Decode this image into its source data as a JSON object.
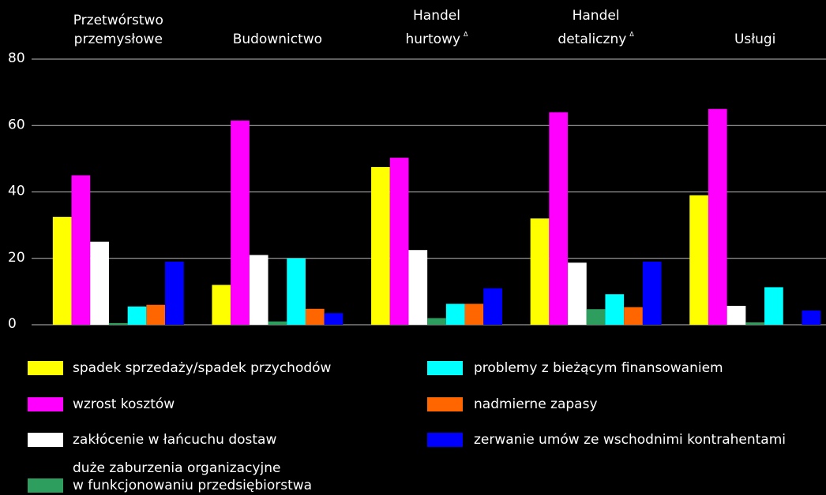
{
  "chart_data": {
    "type": "bar",
    "categories": [
      "Przetwórstwo\nprzemysłowe",
      "Budownictwo",
      "Handel\nhurtowy",
      "Handel\ndetaliczny",
      "Usługi"
    ],
    "category_notes": [
      null,
      null,
      "Δ",
      "Δ",
      null
    ],
    "series": [
      {
        "name": "spadek sprzedaży/spadek przychodów",
        "color": "#ffff00",
        "values": [
          32.5,
          12,
          47.5,
          32,
          39
        ]
      },
      {
        "name": "wzrost kosztów",
        "color": "#ff00ff",
        "values": [
          45,
          61.5,
          50.3,
          64,
          65
        ]
      },
      {
        "name": "zakłócenie w łańcuchu dostaw",
        "color": "#ffffff",
        "values": [
          25,
          21,
          22.5,
          18.7,
          5.7
        ]
      },
      {
        "name": "duże zaburzenia organizacyjne\nw funkcjonowaniu przedsiębiorstwa",
        "color": "#2e9e5e",
        "values": [
          0.5,
          1,
          2,
          4.7,
          0.7
        ]
      },
      {
        "name": "problemy z bieżącym finansowaniem",
        "color": "#00ffff",
        "values": [
          5.5,
          20,
          6.3,
          9.2,
          11.3
        ]
      },
      {
        "name": "nadmierne zapasy",
        "color": "#ff6600",
        "values": [
          6,
          4.8,
          6.3,
          5.3,
          0
        ]
      },
      {
        "name": "zerwanie umów ze wschodnimi kontrahentami",
        "color": "#0000ff",
        "values": [
          19,
          3.5,
          11,
          19,
          4.3
        ]
      }
    ],
    "ylim": [
      0,
      80
    ],
    "yticks": [
      0,
      20,
      40,
      60,
      80
    ],
    "grid": true
  }
}
